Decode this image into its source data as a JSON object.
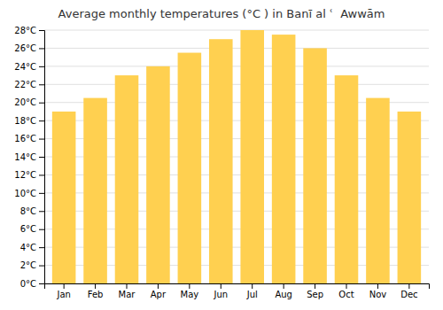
{
  "chart_data": {
    "type": "bar",
    "title": "Average monthly temperatures (°C ) in Banī al ʿ  Awwām",
    "categories": [
      "Jan",
      "Feb",
      "Mar",
      "Apr",
      "May",
      "Jun",
      "Jul",
      "Aug",
      "Sep",
      "Oct",
      "Nov",
      "Dec"
    ],
    "values": [
      19.0,
      20.5,
      23.0,
      24.0,
      25.5,
      27.0,
      28.0,
      27.5,
      26.0,
      23.0,
      20.5,
      19.0
    ],
    "color": "#FFD050",
    "ylim": [
      0,
      28
    ],
    "yticks": [
      {
        "value": 0,
        "label": "0°C"
      },
      {
        "value": 2,
        "label": "2°C"
      },
      {
        "value": 4,
        "label": "4°C"
      },
      {
        "value": 6,
        "label": "6°C"
      },
      {
        "value": 8,
        "label": "8°C"
      },
      {
        "value": 10,
        "label": "10°C"
      },
      {
        "value": 12,
        "label": "12°C"
      },
      {
        "value": 14,
        "label": "14°C"
      },
      {
        "value": 16,
        "label": "16°C"
      },
      {
        "value": 18,
        "label": "18°C"
      },
      {
        "value": 20,
        "label": "20°C"
      },
      {
        "value": 22,
        "label": "22°C"
      },
      {
        "value": 24,
        "label": "24°C"
      },
      {
        "value": 26,
        "label": "26°C"
      },
      {
        "value": 28,
        "label": "28°C"
      }
    ],
    "grid": true
  }
}
